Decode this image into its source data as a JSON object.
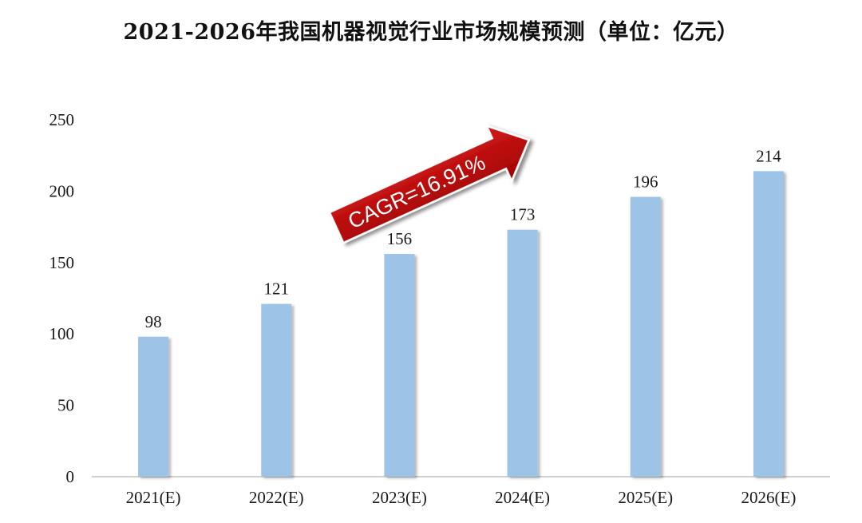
{
  "chart_data": {
    "type": "bar",
    "title": "2021-2026年我国机器视觉行业市场规模预测（单位：亿元）",
    "categories": [
      "2021(E)",
      "2022(E)",
      "2023(E)",
      "2024(E)",
      "2025(E)",
      "2026(E)"
    ],
    "values": [
      98,
      121,
      156,
      173,
      196,
      214
    ],
    "data_labels": [
      "98",
      "121",
      "156",
      "173",
      "196",
      "214"
    ],
    "ylim": [
      0,
      250
    ],
    "yticks": [
      0,
      50,
      100,
      150,
      200,
      250
    ],
    "ytick_labels": [
      "0",
      "50",
      "100",
      "150",
      "200",
      "250"
    ],
    "xlabel": "",
    "ylabel": "",
    "grid": false,
    "annotation": "CAGR=16.91%",
    "colors": {
      "bar": "#9dc3e6",
      "arrow": "#c00000"
    }
  }
}
